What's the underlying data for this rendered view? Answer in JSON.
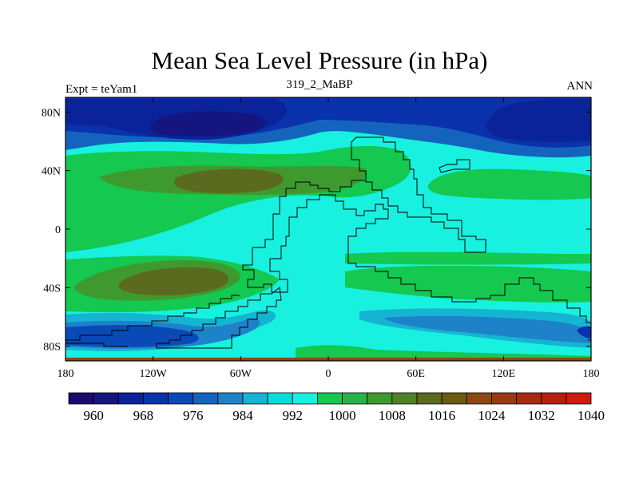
{
  "chart_data": {
    "type": "heatmap",
    "title": "Mean Sea Level Pressure (in hPa)",
    "left_string": "Expt = teYam1",
    "center_string": "319_2_MaBP",
    "right_string": "ANN",
    "x_ticks": [
      {
        "value": -180,
        "label": "180"
      },
      {
        "value": -120,
        "label": "120W"
      },
      {
        "value": -60,
        "label": "60W"
      },
      {
        "value": 0,
        "label": "0"
      },
      {
        "value": 60,
        "label": "60E"
      },
      {
        "value": 120,
        "label": "120E"
      },
      {
        "value": 180,
        "label": "180"
      }
    ],
    "y_ticks": [
      {
        "value": 80,
        "label": "80N"
      },
      {
        "value": 40,
        "label": "40N"
      },
      {
        "value": 0,
        "label": "0"
      },
      {
        "value": -40,
        "label": "40S"
      },
      {
        "value": -80,
        "label": "80S"
      }
    ],
    "xlim": [
      -180,
      180
    ],
    "ylim": [
      -90,
      90
    ],
    "colorbar": {
      "levels": [
        960,
        964,
        968,
        972,
        976,
        980,
        984,
        988,
        992,
        996,
        1000,
        1004,
        1008,
        1012,
        1016,
        1020,
        1024,
        1028,
        1032,
        1036,
        1040
      ],
      "labels": [
        "960",
        "968",
        "976",
        "984",
        "992",
        "1000",
        "1008",
        "1016",
        "1024",
        "1032",
        "1040"
      ],
      "colors": [
        "#1a0a6e",
        "#15157f",
        "#0a239b",
        "#0a32ad",
        "#0a4ab8",
        "#1464be",
        "#1e82c8",
        "#14b4d2",
        "#0adcdc",
        "#18f0e0",
        "#14c850",
        "#28b448",
        "#3e9a2e",
        "#4f8228",
        "#5a6a1e",
        "#6a5a14",
        "#8a4a12",
        "#9a3a12",
        "#a82a10",
        "#b81e10",
        "#d01a10"
      ]
    }
  }
}
